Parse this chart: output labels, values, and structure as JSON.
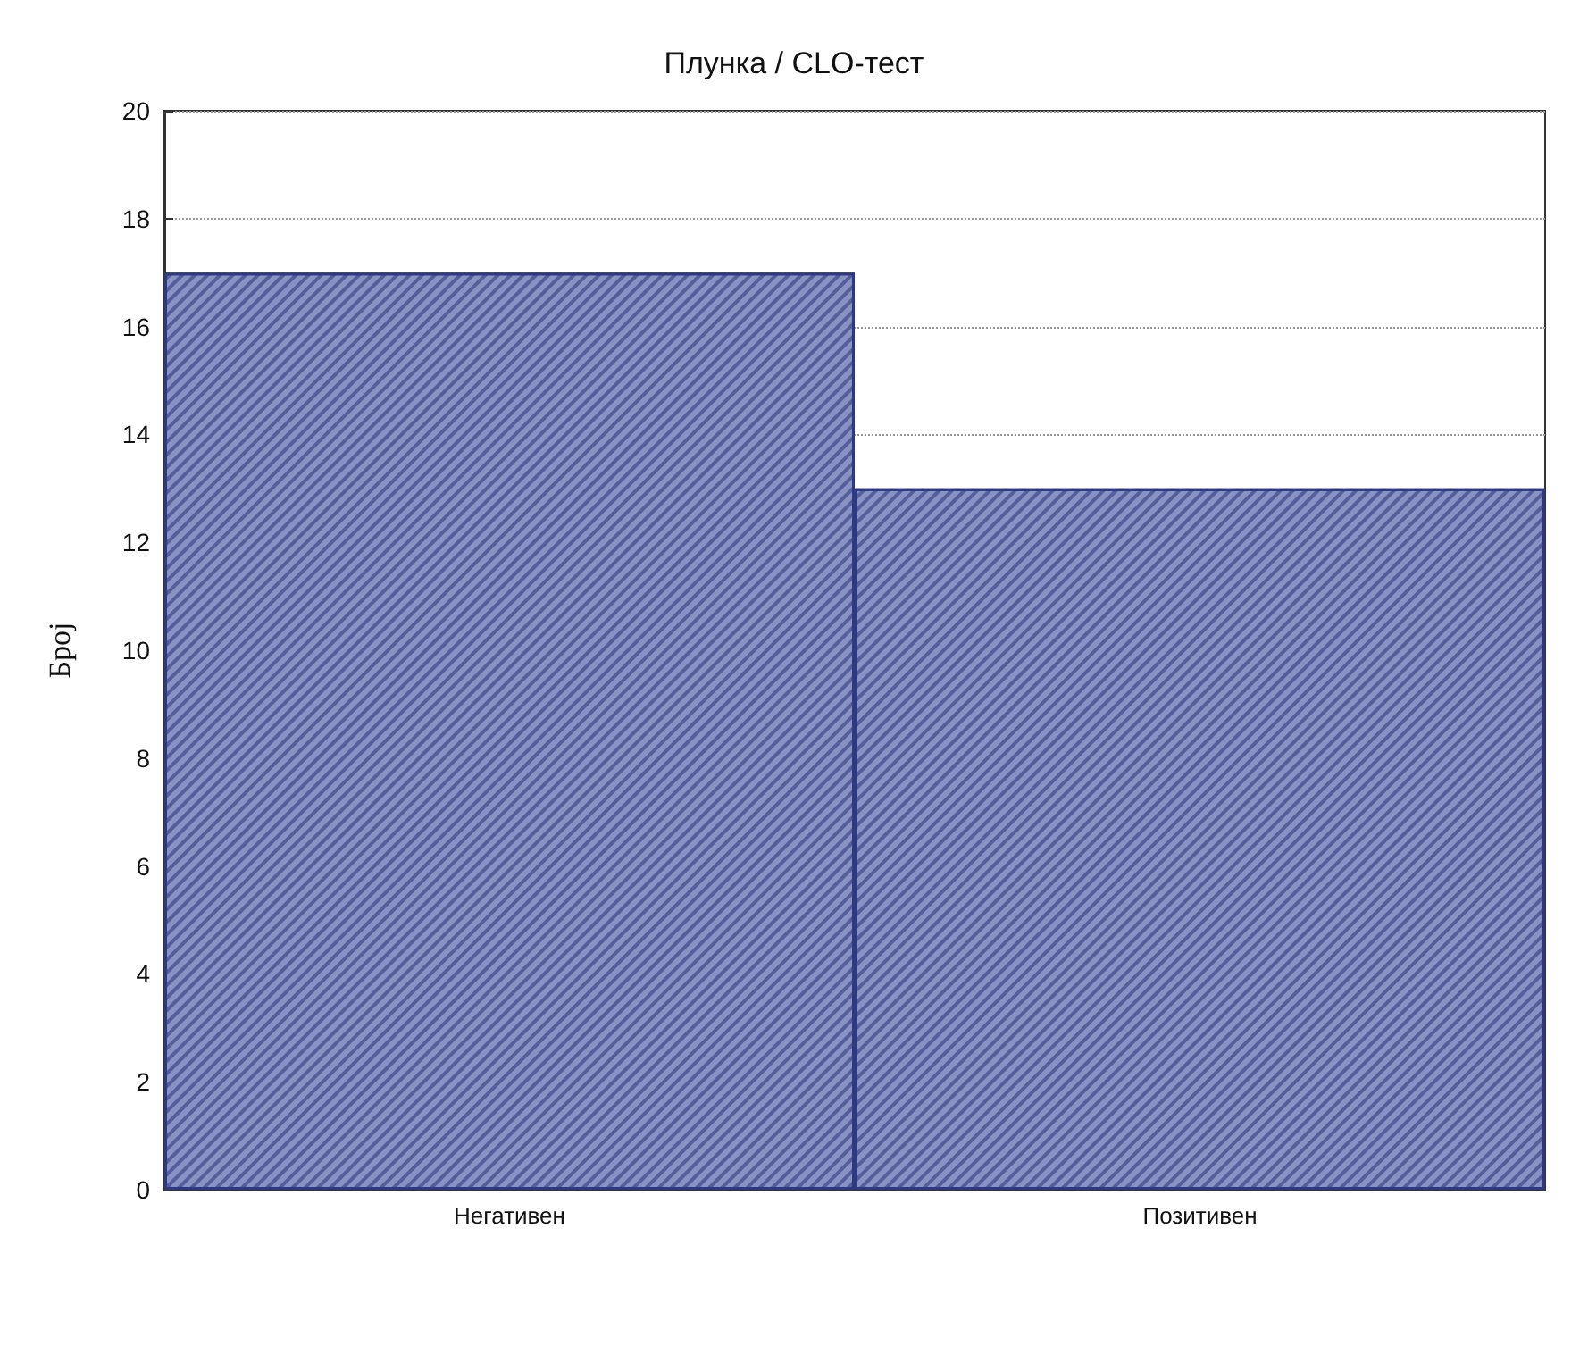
{
  "chart_data": {
    "type": "bar",
    "title": "Плунка / CLO-тест",
    "ylabel": "Број",
    "categories": [
      "Негативен",
      "Позитивен"
    ],
    "values": [
      17,
      13
    ],
    "color": "#8a92c4",
    "ylim": [
      0,
      20
    ],
    "yticks": [
      0,
      2,
      4,
      6,
      8,
      10,
      12,
      14,
      16,
      18,
      20
    ],
    "grid": "y"
  }
}
